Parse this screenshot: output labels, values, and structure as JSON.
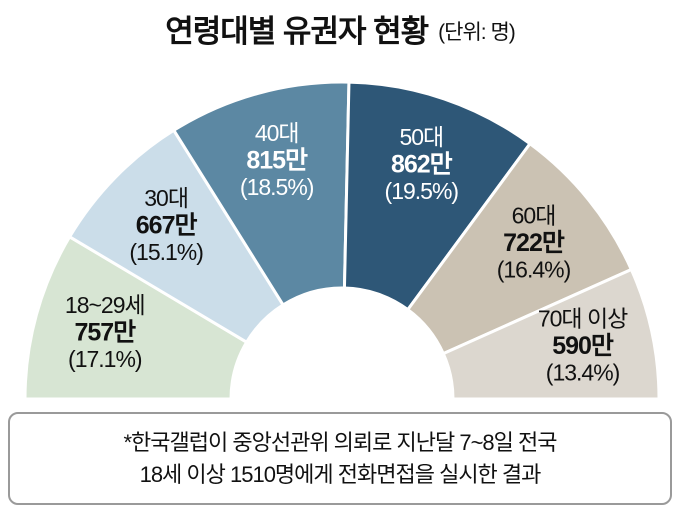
{
  "title": {
    "main": "연령대별 유권자 현황",
    "unit": "(단위: 명)"
  },
  "chart_data": {
    "type": "pie",
    "variant": "half-donut",
    "title": "연령대별 유권자 현황",
    "unit_label": "(단위: 명)",
    "value_unit": "만 명",
    "segments": [
      {
        "label": "18~29세",
        "value": "757만",
        "pct": 17.1,
        "pct_label": "(17.1%)",
        "color": "#d7e5d3",
        "text_color": "#111111"
      },
      {
        "label": "30대",
        "value": "667만",
        "pct": 15.1,
        "pct_label": "(15.1%)",
        "color": "#cbdde9",
        "text_color": "#111111"
      },
      {
        "label": "40대",
        "value": "815만",
        "pct": 18.5,
        "pct_label": "(18.5%)",
        "color": "#5c88a3",
        "text_color": "#ffffff"
      },
      {
        "label": "50대",
        "value": "862만",
        "pct": 19.5,
        "pct_label": "(19.5%)",
        "color": "#2e5777",
        "text_color": "#ffffff"
      },
      {
        "label": "60대",
        "value": "722만",
        "pct": 16.4,
        "pct_label": "(16.4%)",
        "color": "#cbc2b3",
        "text_color": "#111111"
      },
      {
        "label": "70대 이상",
        "value": "590만",
        "pct": 13.4,
        "pct_label": "(13.4%)",
        "color": "#dcd7cf",
        "text_color": "#111111"
      }
    ],
    "geometry_note": "semicircle, 180 degrees total, segments ordered left-to-right"
  },
  "footnote": {
    "line1": "*한국갤럽이 중앙선관위 의뢰로 지난달 7~8일 전국",
    "line2": "18세 이상 1510명에게 전화면접을 실시한 결과"
  }
}
